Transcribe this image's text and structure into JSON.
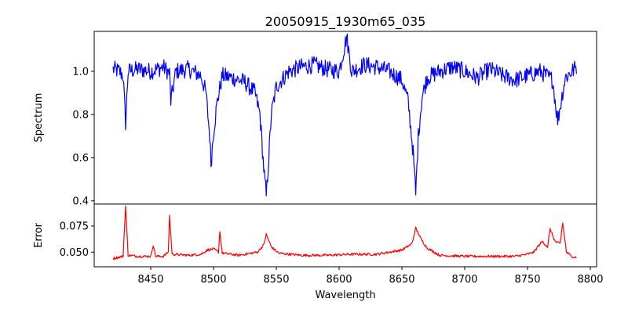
{
  "chart_data": {
    "type": "line",
    "title": "20050915_1930m65_035",
    "xlabel": "Wavelength",
    "xlim": [
      8405,
      8805
    ],
    "x_ticks": [
      8450,
      8500,
      8550,
      8600,
      8650,
      8700,
      8750,
      8800
    ],
    "x_tick_labels": [
      "8450",
      "8500",
      "8550",
      "8600",
      "8650",
      "8700",
      "8750",
      "8800"
    ],
    "x_range": [
      8420,
      8789
    ],
    "panels": [
      {
        "id": "spectrum",
        "ylabel": "Spectrum",
        "ylim": [
          0.385,
          1.185
        ],
        "y_ticks": [
          0.4,
          0.6,
          0.8,
          1.0
        ],
        "y_tick_labels": [
          "0.4",
          "0.6",
          "0.8",
          "1.0"
        ],
        "color": "#0000ff",
        "series": [
          {
            "x": [
              8420,
              8425,
              8428,
              8430,
              8432,
              8440,
              8450,
              8460,
              8465,
              8466,
              8470,
              8480,
              8490,
              8494,
              8497,
              8498,
              8500,
              8503,
              8507,
              8515,
              8525,
              8533,
              8537,
              8540,
              8542,
              8544,
              8546,
              8550,
              8560,
              8570,
              8580,
              8590,
              8600,
              8606,
              8610,
              8620,
              8630,
              8640,
              8650,
              8655,
              8659,
              8661,
              8663,
              8666,
              8670,
              8680,
              8690,
              8700,
              8710,
              8720,
              8730,
              8740,
              8750,
              8760,
              8770,
              8774,
              8780,
              8789
            ],
            "y": [
              1.01,
              1.0,
              0.98,
              0.76,
              1.0,
              1.01,
              1.0,
              1.02,
              0.99,
              0.86,
              1.0,
              1.01,
              0.98,
              0.9,
              0.7,
              0.57,
              0.72,
              0.86,
              0.98,
              0.97,
              0.95,
              0.9,
              0.8,
              0.55,
              0.42,
              0.6,
              0.8,
              0.93,
              1.0,
              1.02,
              1.03,
              1.01,
              1.0,
              1.16,
              1.0,
              1.03,
              1.02,
              1.0,
              0.96,
              0.86,
              0.62,
              0.43,
              0.7,
              0.88,
              0.97,
              1.0,
              1.02,
              1.0,
              0.97,
              1.01,
              0.98,
              0.96,
              0.98,
              1.0,
              0.96,
              0.77,
              0.97,
              1.02
            ]
          }
        ]
      },
      {
        "id": "error",
        "ylabel": "Error",
        "ylim": [
          0.036,
          0.096
        ],
        "y_ticks": [
          0.05,
          0.075
        ],
        "y_tick_labels": [
          "0.050",
          "0.075"
        ],
        "color": "#ff0000",
        "series": [
          {
            "x": [
              8420,
              8428,
              8430,
              8432,
              8440,
              8450,
              8452,
              8454,
              8460,
              8464,
              8465,
              8467,
              8480,
              8490,
              8495,
              8500,
              8504,
              8505,
              8507,
              8520,
              8535,
              8540,
              8542,
              8546,
              8552,
              8570,
              8590,
              8610,
              8630,
              8650,
              8658,
              8661,
              8665,
              8670,
              8680,
              8700,
              8720,
              8740,
              8750,
              8755,
              8760,
              8762,
              8766,
              8768,
              8772,
              8776,
              8778,
              8781,
              8785,
              8789
            ],
            "y": [
              0.044,
              0.046,
              0.094,
              0.047,
              0.046,
              0.046,
              0.057,
              0.046,
              0.046,
              0.05,
              0.085,
              0.048,
              0.047,
              0.048,
              0.052,
              0.053,
              0.05,
              0.07,
              0.049,
              0.047,
              0.05,
              0.057,
              0.067,
              0.055,
              0.049,
              0.047,
              0.047,
              0.048,
              0.048,
              0.052,
              0.058,
              0.073,
              0.063,
              0.054,
              0.047,
              0.046,
              0.046,
              0.046,
              0.048,
              0.05,
              0.058,
              0.06,
              0.055,
              0.072,
              0.06,
              0.058,
              0.078,
              0.05,
              0.046,
              0.045
            ]
          }
        ]
      }
    ]
  }
}
